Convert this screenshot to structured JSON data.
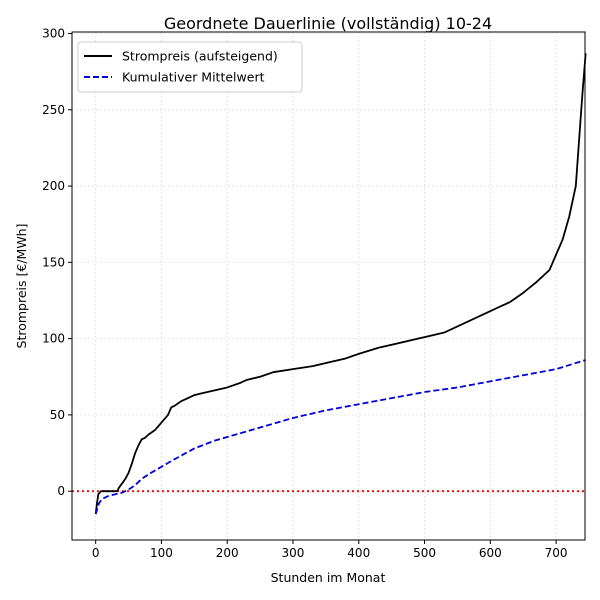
{
  "chart_data": {
    "type": "line",
    "title": "Geordnete Dauerlinie (vollständig) 10-24",
    "xlabel": "Stunden im Monat",
    "ylabel": "Strompreis [€/MWh]",
    "xlim": [
      -36,
      744
    ],
    "ylim": [
      -32,
      301
    ],
    "xticks": [
      0,
      100,
      200,
      300,
      400,
      500,
      600,
      700
    ],
    "yticks": [
      0,
      50,
      100,
      150,
      200,
      250,
      300
    ],
    "grid": true,
    "legend_position": "top-left",
    "reference_line": {
      "y": 0,
      "color": "#ff0000",
      "style": "dotted"
    },
    "series": [
      {
        "name": "Strompreis (aufsteigend)",
        "color": "#000000",
        "style": "solid",
        "x": [
          0,
          2,
          4,
          8,
          15,
          25,
          33,
          35,
          40,
          45,
          50,
          55,
          60,
          65,
          70,
          75,
          80,
          90,
          100,
          110,
          115,
          120,
          130,
          140,
          150,
          160,
          170,
          180,
          190,
          200,
          220,
          230,
          250,
          270,
          300,
          330,
          360,
          380,
          400,
          430,
          460,
          490,
          510,
          530,
          550,
          570,
          590,
          610,
          630,
          650,
          670,
          690,
          700,
          710,
          720,
          730,
          735,
          740,
          745
        ],
        "y": [
          -15,
          -8,
          -2,
          0,
          0,
          0,
          0,
          2,
          5,
          8,
          12,
          18,
          25,
          30,
          34,
          35,
          37,
          40,
          45,
          50,
          55,
          56,
          59,
          61,
          63,
          64,
          65,
          66,
          67,
          68,
          71,
          73,
          75,
          78,
          80,
          82,
          85,
          87,
          90,
          94,
          97,
          100,
          102,
          104,
          108,
          112,
          116,
          120,
          124,
          130,
          137,
          145,
          155,
          165,
          180,
          200,
          230,
          260,
          287
        ]
      },
      {
        "name": "Kumulativer Mittelwert",
        "color": "#0000dd",
        "style": "dashed",
        "x": [
          0,
          5,
          10,
          20,
          30,
          40,
          50,
          60,
          70,
          80,
          100,
          120,
          150,
          180,
          220,
          260,
          300,
          350,
          400,
          450,
          500,
          550,
          600,
          650,
          700,
          745
        ],
        "y": [
          -15,
          -8,
          -5,
          -3,
          -2,
          -1,
          1,
          4,
          8,
          11,
          16,
          21,
          28,
          33,
          38,
          43,
          48,
          53,
          57,
          61,
          65,
          68,
          72,
          76,
          80,
          86
        ]
      }
    ]
  }
}
